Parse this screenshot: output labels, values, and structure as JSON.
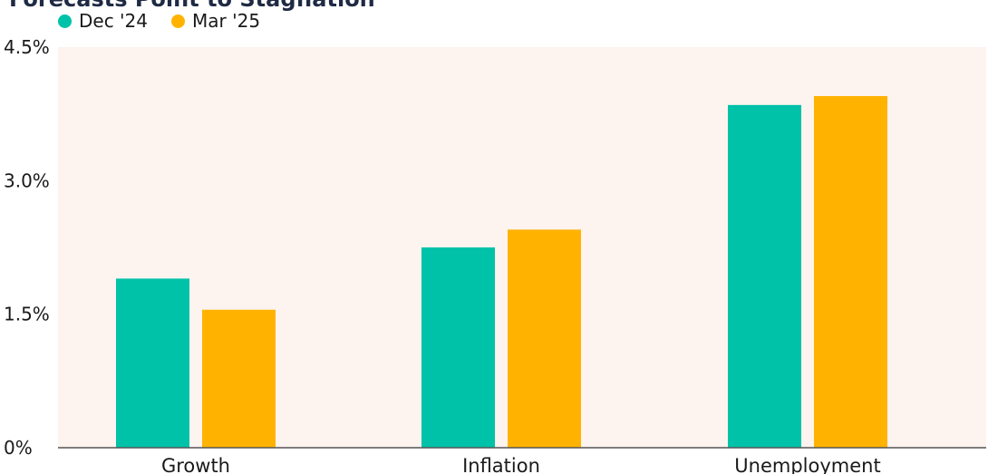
{
  "chart_data": {
    "type": "bar",
    "title": "Forecasts Point to Stagflation",
    "categories": [
      "Growth",
      "Inflation",
      "Unemployment"
    ],
    "series": [
      {
        "name": "Dec '24",
        "values": [
          1.9,
          2.25,
          3.85
        ],
        "color": "#00c2a8"
      },
      {
        "name": "Mar '25",
        "values": [
          1.55,
          2.45,
          3.95
        ],
        "color": "#ffb300"
      }
    ],
    "ylim": [
      0,
      4.5
    ],
    "yticks": [
      0,
      1.5,
      3.0,
      4.5
    ],
    "ytick_labels": [
      "0%",
      "1.5%",
      "3.0%",
      "4.5%"
    ],
    "grid": false,
    "plot_background": "#fdf3ef",
    "legend_position": "top-left"
  }
}
